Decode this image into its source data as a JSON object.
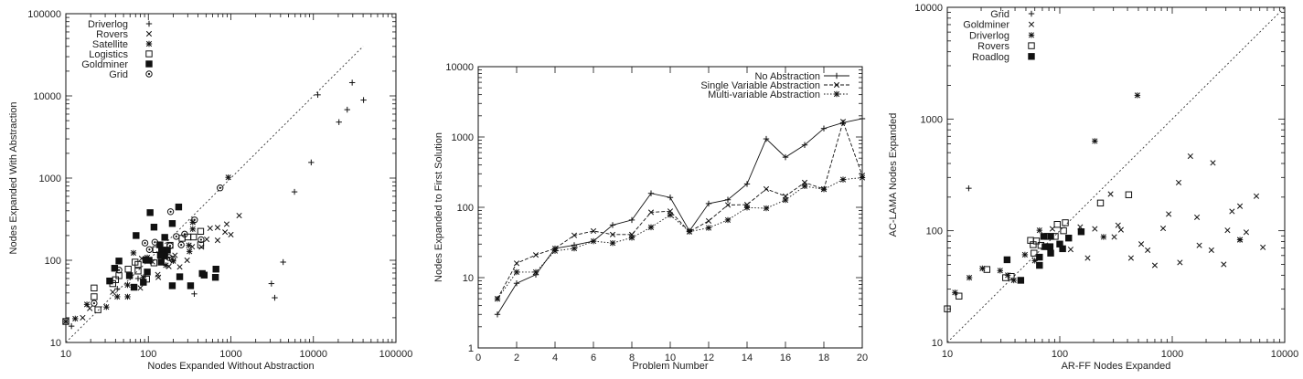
{
  "chart_data": [
    {
      "type": "scatter",
      "xlabel": "Nodes Expanded Without Abstraction",
      "ylabel": "Nodes Expanded With Abstraction",
      "xscale": "log",
      "yscale": "log",
      "xlim": [
        10,
        100000
      ],
      "ylim": [
        10,
        100000
      ],
      "xticks": [
        "10",
        "100",
        "1000",
        "10000",
        "100000"
      ],
      "yticks": [
        "10",
        "100",
        "1000",
        "10000",
        "100000"
      ],
      "legend_position": "top-left",
      "diagonal": [
        10,
        40000
      ],
      "series": [
        {
          "name": "Driverlog",
          "marker": "plus",
          "points": [
            [
              11300,
              10300
            ],
            [
              29500,
              14500
            ],
            [
              40500,
              8900
            ],
            [
              25700,
              6800
            ],
            [
              20400,
              4800
            ],
            [
              9400,
              1550
            ],
            [
              5900,
              680
            ],
            [
              4300,
              95
            ],
            [
              3100,
              52
            ],
            [
              3400,
              35
            ],
            [
              360,
              39
            ],
            [
              11.7,
              15.8
            ],
            [
              60,
              62
            ],
            [
              75,
              60
            ],
            [
              42,
              45
            ]
          ]
        },
        {
          "name": "Rovers",
          "marker": "cross",
          "points": [
            [
              1260,
              350
            ],
            [
              560,
              245
            ],
            [
              690,
              250
            ],
            [
              890,
              275
            ],
            [
              850,
              220
            ],
            [
              1000,
              205
            ],
            [
              690,
              175
            ],
            [
              510,
              180
            ],
            [
              440,
              145
            ],
            [
              295,
              100
            ],
            [
              240,
              83
            ],
            [
              210,
              115
            ],
            [
              132,
              62
            ],
            [
              130,
              67
            ],
            [
              80,
              46
            ],
            [
              83,
              105
            ],
            [
              19.5,
              26
            ],
            [
              16,
              20
            ],
            [
              37,
              41
            ],
            [
              112,
              96
            ],
            [
              177,
              84
            ],
            [
              340,
              146
            ]
          ]
        },
        {
          "name": "Satellite",
          "marker": "star",
          "points": [
            [
              930,
              1020
            ],
            [
              345,
              290
            ],
            [
              345,
              240
            ],
            [
              310,
              152
            ],
            [
              315,
              128
            ],
            [
              66,
              123
            ],
            [
              97,
              108
            ],
            [
              56,
              50
            ],
            [
              56,
              36
            ],
            [
              42,
              36
            ],
            [
              31,
              27
            ],
            [
              18,
              29
            ],
            [
              13,
              19.5
            ],
            [
              10,
              18
            ],
            [
              163,
              87
            ],
            [
              87,
              62
            ],
            [
              200,
              98
            ]
          ]
        },
        {
          "name": "Logistics",
          "marker": "square",
          "points": [
            [
              10,
              18
            ],
            [
              24.5,
              25
            ],
            [
              22,
              36
            ],
            [
              22,
              46
            ],
            [
              37,
              52
            ],
            [
              40,
              58
            ],
            [
              44,
              65
            ],
            [
              57,
              78
            ],
            [
              69,
              95
            ],
            [
              75,
              74
            ],
            [
              75,
              89
            ],
            [
              117,
              93
            ],
            [
              123,
              135
            ],
            [
              183,
              152
            ],
            [
              256,
              185
            ],
            [
              302,
              192
            ],
            [
              353,
              192
            ],
            [
              430,
              225
            ],
            [
              430,
              154
            ],
            [
              95,
              59
            ]
          ]
        },
        {
          "name": "Goldminer",
          "marker": "filled-square",
          "points": [
            [
              233,
              445
            ],
            [
              105,
              380
            ],
            [
              117,
              253
            ],
            [
              195,
              280
            ],
            [
              71,
              200
            ],
            [
              158,
              190
            ],
            [
              138,
              154
            ],
            [
              170,
              133
            ],
            [
              146,
              133
            ],
            [
              158,
              113
            ],
            [
              140,
              115
            ],
            [
              143,
              95
            ],
            [
              102,
              100
            ],
            [
              93,
              101
            ],
            [
              97,
              72
            ],
            [
              87,
              54
            ],
            [
              67,
              47
            ],
            [
              44,
              98
            ],
            [
              39,
              80
            ],
            [
              34,
              56
            ],
            [
              59,
              65
            ],
            [
              195,
              49
            ],
            [
              240,
              63
            ],
            [
              325,
              49
            ],
            [
              450,
              69
            ],
            [
              475,
              66
            ],
            [
              650,
              62
            ],
            [
              660,
              78
            ]
          ]
        },
        {
          "name": "Grid",
          "marker": "circle",
          "points": [
            [
              740,
              760
            ],
            [
              186,
              390
            ],
            [
              363,
              310
            ],
            [
              275,
              208
            ],
            [
              218,
              195
            ],
            [
              435,
              178
            ],
            [
              91,
              162
            ],
            [
              120,
              166
            ],
            [
              103,
              135
            ],
            [
              183,
              150
            ],
            [
              250,
              154
            ],
            [
              178,
              108
            ],
            [
              196,
              103
            ],
            [
              44,
              76
            ],
            [
              22,
              30
            ]
          ]
        }
      ]
    },
    {
      "type": "line",
      "xlabel": "Problem Number",
      "ylabel": "Nodes Expanded to First Solution",
      "yscale": "log",
      "xlim": [
        0,
        20
      ],
      "ylim": [
        1,
        10000
      ],
      "xticks": [
        "0",
        "2",
        "4",
        "6",
        "8",
        "10",
        "12",
        "14",
        "16",
        "18",
        "20"
      ],
      "yticks": [
        "1",
        "10",
        "100",
        "1000",
        "10000"
      ],
      "legend_position": "top-right",
      "x": [
        1,
        2,
        3,
        4,
        5,
        6,
        7,
        8,
        9,
        10,
        11,
        12,
        13,
        14,
        15,
        16,
        17,
        18,
        19,
        20
      ],
      "series": [
        {
          "name": "No Abstraction",
          "marker": "plus",
          "dash": "solid",
          "values": [
            3,
            8.3,
            11,
            26,
            29,
            33,
            56,
            66,
            158,
            138,
            46,
            113,
            128,
            215,
            940,
            516,
            770,
            1320,
            1600,
            1820
          ]
        },
        {
          "name": "Single Variable Abstraction",
          "marker": "cross",
          "dash": "dashed",
          "values": [
            5,
            16,
            21,
            26,
            40,
            46,
            41,
            41,
            85,
            88,
            45,
            64,
            108,
            109,
            182,
            144,
            225,
            182,
            1650,
            283
          ]
        },
        {
          "name": "Multi-variable Abstraction",
          "marker": "star",
          "dash": "dotted",
          "values": [
            5,
            12,
            12,
            24,
            26,
            33,
            31,
            37,
            52,
            78,
            45,
            51,
            66,
            99,
            97,
            127,
            200,
            180,
            248,
            264
          ]
        }
      ]
    },
    {
      "type": "scatter",
      "xlabel": "AR-FF Nodes Expanded",
      "ylabel": "AC-LAMA Nodes Expanded",
      "xscale": "log",
      "yscale": "log",
      "xlim": [
        10,
        10000
      ],
      "ylim": [
        10,
        10000
      ],
      "xticks": [
        "10",
        "100",
        "1000",
        "10000"
      ],
      "yticks": [
        "10",
        "100",
        "1000",
        "10000"
      ],
      "legend_position": "top-left",
      "diagonal": [
        10,
        10000
      ],
      "series": [
        {
          "name": "Grid",
          "marker": "plus",
          "points": [
            [
              15.5,
              240
            ]
          ]
        },
        {
          "name": "Goldminer",
          "marker": "cross",
          "points": [
            [
              1450,
              465
            ],
            [
              2300,
              405
            ],
            [
              1140,
              270
            ],
            [
              5600,
              204
            ],
            [
              4000,
              166
            ],
            [
              3400,
              149
            ],
            [
              1660,
              132
            ],
            [
              930,
              141
            ],
            [
              830,
              105
            ],
            [
              3100,
              101
            ],
            [
              4550,
              97
            ],
            [
              4000,
              83
            ],
            [
              6400,
              71
            ],
            [
              1740,
              74
            ],
            [
              2230,
              67
            ],
            [
              530,
              76
            ],
            [
              605,
              67
            ],
            [
              430,
              57
            ],
            [
              1170,
              52
            ],
            [
              700,
              49
            ],
            [
              2870,
              50
            ],
            [
              283,
              213
            ],
            [
              205,
              104
            ],
            [
              330,
              112
            ],
            [
              350,
              102
            ],
            [
              305,
              88
            ],
            [
              177,
              57
            ],
            [
              125,
              68
            ],
            [
              152,
              108
            ],
            [
              86,
              104
            ]
          ]
        },
        {
          "name": "Driverlog",
          "marker": "star",
          "points": [
            [
              490,
              1630
            ],
            [
              205,
              635
            ],
            [
              245,
              88
            ],
            [
              4000,
              83
            ],
            [
              66,
              101
            ],
            [
              49,
              61
            ],
            [
              60,
              54
            ],
            [
              34.5,
              40
            ],
            [
              39,
              36
            ],
            [
              29.5,
              44
            ],
            [
              20.5,
              46
            ],
            [
              15.7,
              38
            ],
            [
              11.7,
              28
            ]
          ]
        },
        {
          "name": "Rovers",
          "marker": "square",
          "points": [
            [
              410,
              210
            ],
            [
              230,
              177
            ],
            [
              112,
              118
            ],
            [
              95,
              114
            ],
            [
              108,
              100
            ],
            [
              91,
              89
            ],
            [
              78,
              89
            ],
            [
              62,
              81
            ],
            [
              55,
              82
            ],
            [
              58,
              75
            ],
            [
              68,
              74
            ],
            [
              59,
              63
            ],
            [
              22.5,
              45
            ],
            [
              33,
              38
            ],
            [
              37,
              39
            ],
            [
              12.7,
              26
            ],
            [
              10,
              20
            ]
          ]
        },
        {
          "name": "Roadlog",
          "marker": "filled-square",
          "points": [
            [
              155,
              98
            ],
            [
              120,
              86
            ],
            [
              100,
              76
            ],
            [
              106,
              69
            ],
            [
              82,
              72
            ],
            [
              74,
              72
            ],
            [
              72,
              89
            ],
            [
              83,
              89
            ],
            [
              83,
              63
            ],
            [
              66,
              58
            ],
            [
              66,
              49
            ],
            [
              45,
              36
            ],
            [
              34,
              55
            ]
          ]
        }
      ]
    }
  ]
}
